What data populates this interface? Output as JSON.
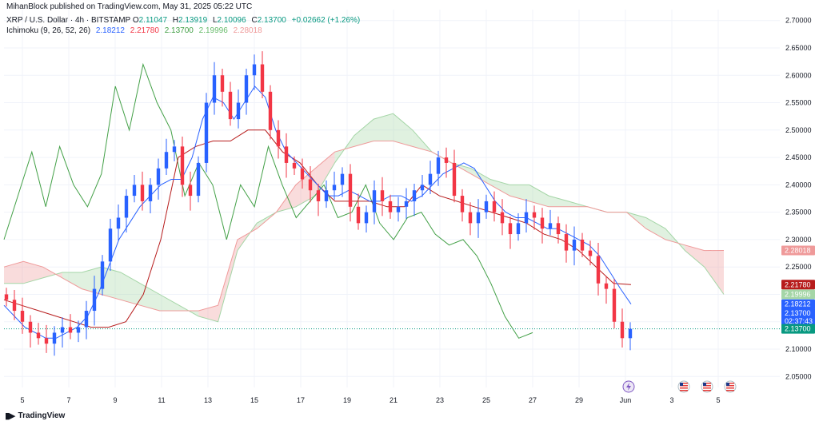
{
  "header": {
    "publisher": "MihanBlock published on TradingView.com, May 31, 2025 05:22 UTC",
    "symbol": "XRP / U.S. Dollar · 4h · BITSTAMP",
    "ohlc": [
      {
        "key": "O",
        "value": "2.11047"
      },
      {
        "key": "H",
        "value": "2.13919"
      },
      {
        "key": "L",
        "value": "2.10096"
      },
      {
        "key": "C",
        "value": "2.13700"
      },
      {
        "key": "",
        "value": "+0.02662 (+1.26%)"
      }
    ],
    "ichimoku_label": "Ichimoku (9, 26, 52, 26)",
    "ichimoku_values": [
      "2.18212",
      "2.21780",
      "2.13700",
      "2.19996",
      "2.28018"
    ]
  },
  "colors": {
    "up": "#2962ff",
    "down": "#f23645",
    "conversion": "#2962ff",
    "base": "#b71c1c",
    "lagging": "#43a047",
    "cloud_bull": "#a5d6a7",
    "cloud_bear": "#ef9a9a",
    "lead_a": "#a5d6a7",
    "lead_b": "#ef9a9a",
    "last_price": "#089981"
  },
  "chart_data": {
    "type": "candlestick",
    "x_tick_labels": [
      "5",
      "7",
      "9",
      "11",
      "13",
      "15",
      "17",
      "19",
      "21",
      "23",
      "25",
      "27",
      "29",
      "Jun",
      "3",
      "5"
    ],
    "y_tick_labels": [
      "2.05000",
      "2.10000",
      "2.15000",
      "2.20000",
      "2.25000",
      "2.30000",
      "2.35000",
      "2.40000",
      "2.45000",
      "2.50000",
      "2.55000",
      "2.60000",
      "2.65000",
      "2.70000"
    ],
    "ylim": [
      2.03,
      2.72
    ],
    "price_tags": [
      {
        "label": "2.28018",
        "value": 2.28018,
        "color": "#ef9a9a"
      },
      {
        "label": "2.21780",
        "value": 2.2178,
        "color": "#b71c1c"
      },
      {
        "label": "2.19996",
        "value": 2.19996,
        "color": "#a5d6a7"
      },
      {
        "label": "2.18212",
        "value": 2.18212,
        "color": "#2962ff"
      },
      {
        "label": "2.13700",
        "value": 2.166,
        "color": "#2962ff",
        "sub": "02:37:43"
      },
      {
        "label": "2.13700",
        "value": 2.137,
        "color": "#089981"
      }
    ],
    "closes": [
      2.19,
      2.17,
      2.15,
      2.13,
      2.12,
      2.11,
      2.13,
      2.14,
      2.13,
      2.14,
      2.17,
      2.21,
      2.26,
      2.32,
      2.34,
      2.38,
      2.4,
      2.37,
      2.4,
      2.43,
      2.46,
      2.47,
      2.4,
      2.38,
      2.44,
      2.55,
      2.6,
      2.57,
      2.52,
      2.55,
      2.6,
      2.62,
      2.57,
      2.5,
      2.47,
      2.44,
      2.43,
      2.41,
      2.39,
      2.37,
      2.39,
      2.4,
      2.42,
      2.36,
      2.33,
      2.35,
      2.39,
      2.37,
      2.35,
      2.36,
      2.37,
      2.39,
      2.4,
      2.42,
      2.45,
      2.44,
      2.38,
      2.35,
      2.33,
      2.35,
      2.37,
      2.35,
      2.33,
      2.31,
      2.33,
      2.35,
      2.34,
      2.32,
      2.33,
      2.31,
      2.28,
      2.3,
      2.28,
      2.27,
      2.22,
      2.21,
      2.15,
      2.12,
      2.137
    ],
    "conversion_line": [
      2.18,
      2.16,
      2.14,
      2.13,
      2.12,
      2.12,
      2.13,
      2.14,
      2.16,
      2.2,
      2.25,
      2.3,
      2.33,
      2.36,
      2.38,
      2.4,
      2.41,
      2.41,
      2.45,
      2.52,
      2.56,
      2.55,
      2.52,
      2.55,
      2.58,
      2.56,
      2.5,
      2.46,
      2.44,
      2.42,
      2.4,
      2.38,
      2.38,
      2.39,
      2.38,
      2.37,
      2.37,
      2.38,
      2.38,
      2.37,
      2.38,
      2.4,
      2.42,
      2.43,
      2.44,
      2.43,
      2.4,
      2.37,
      2.35,
      2.34,
      2.34,
      2.33,
      2.32,
      2.32,
      2.31,
      2.3,
      2.29,
      2.27,
      2.24,
      2.21,
      2.18212
    ],
    "base_line": [
      2.19,
      2.18,
      2.17,
      2.16,
      2.15,
      2.14,
      2.14,
      2.15,
      2.2,
      2.3,
      2.45,
      2.47,
      2.48,
      2.48,
      2.5,
      2.5,
      2.46,
      2.44,
      2.4,
      2.37,
      2.37,
      2.37,
      2.36,
      2.36,
      2.4,
      2.38,
      2.37,
      2.36,
      2.35,
      2.34,
      2.33,
      2.31,
      2.3,
      2.28,
      2.25,
      2.22,
      2.2178
    ],
    "lagging_span": [
      2.3,
      2.38,
      2.46,
      2.36,
      2.47,
      2.4,
      2.36,
      2.42,
      2.58,
      2.5,
      2.62,
      2.55,
      2.5,
      2.38,
      2.44,
      2.4,
      2.3,
      2.4,
      2.36,
      2.47,
      2.4,
      2.34,
      2.37,
      2.4,
      2.34,
      2.35,
      2.4,
      2.33,
      2.3,
      2.34,
      2.35,
      2.31,
      2.29,
      2.3,
      2.27,
      2.22,
      2.16,
      2.12,
      2.13
    ],
    "leading_span_a": [
      2.22,
      2.22,
      2.23,
      2.24,
      2.24,
      2.25,
      2.24,
      2.22,
      2.2,
      2.18,
      2.16,
      2.15,
      2.28,
      2.33,
      2.35,
      2.36,
      2.38,
      2.44,
      2.49,
      2.52,
      2.53,
      2.5,
      2.46,
      2.44,
      2.43,
      2.41,
      2.4,
      2.4,
      2.38,
      2.37,
      2.36,
      2.35,
      2.35,
      2.34,
      2.32,
      2.28,
      2.25,
      2.2
    ],
    "leading_span_b": [
      2.25,
      2.26,
      2.25,
      2.23,
      2.21,
      2.2,
      2.19,
      2.18,
      2.17,
      2.17,
      2.17,
      2.18,
      2.3,
      2.32,
      2.35,
      2.4,
      2.43,
      2.46,
      2.47,
      2.48,
      2.48,
      2.47,
      2.46,
      2.44,
      2.42,
      2.4,
      2.38,
      2.37,
      2.36,
      2.36,
      2.36,
      2.35,
      2.35,
      2.32,
      2.3,
      2.29,
      2.28,
      2.28018
    ]
  },
  "footer": {
    "brand": "TradingView"
  }
}
